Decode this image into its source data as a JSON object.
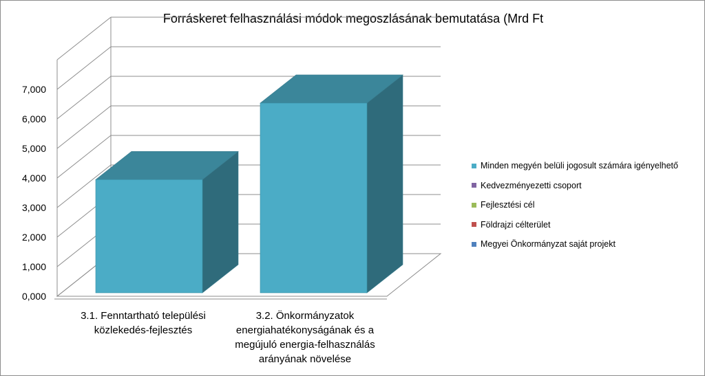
{
  "chart_data": {
    "type": "bar",
    "title": "Forráskeret felhasználási módok megoszlásának bemutatása (Mrd Ft",
    "categories": [
      "3.1. Fenntartható települési\nközlekedés-fejlesztés",
      "3.2. Önkormányzatok\nenergiahatékonyságának és a\nmegújuló energia-felhasználás\narányának növelése"
    ],
    "series": [
      {
        "name": "Minden megyén belüli jogosult számára igényelhető",
        "color": "#4bacc6",
        "values": [
          3.83,
          6.42
        ]
      },
      {
        "name": "Kedvezményezetti csoport",
        "color": "#8064a2",
        "values": [
          0,
          0
        ]
      },
      {
        "name": "Fejlesztési cél",
        "color": "#9bbb59",
        "values": [
          0,
          0
        ]
      },
      {
        "name": "Földrajzi célterület",
        "color": "#c0504d",
        "values": [
          0,
          0
        ]
      },
      {
        "name": "Megyei Önkormányzat saját projekt",
        "color": "#4f81bd",
        "values": [
          0,
          0
        ]
      }
    ],
    "ylim": [
      0,
      7
    ],
    "yticks": [
      "0,000",
      "1,000",
      "2,000",
      "3,000",
      "4,000",
      "5,000",
      "6,000",
      "7,000"
    ],
    "legend_position": "right",
    "grid": true,
    "style": "3d"
  }
}
